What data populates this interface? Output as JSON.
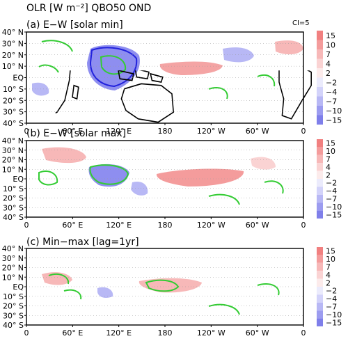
{
  "figure": {
    "title": "OLR [W m⁻²] QBO50 OND",
    "contour_interval": "CI=5",
    "lat_ticks": [
      "40° N",
      "30° N",
      "20° N",
      "10° N",
      "EQ",
      "10° S",
      "20° S",
      "30° S",
      "40° S"
    ],
    "lon_ticks": [
      "0",
      "60° E",
      "120° E",
      "180",
      "120° W",
      "60° W",
      "0"
    ],
    "colorbar": {
      "labels": [
        "15",
        "10",
        "7",
        "4",
        "2",
        "−2",
        "−4",
        "−7",
        "−10",
        "−15"
      ],
      "positive_colors": [
        "#f18080",
        "#f49c9c",
        "#f7b8b8",
        "#fad3d3",
        "#fcebeb"
      ],
      "negative_colors": [
        "#ebebfc",
        "#d3d3fa",
        "#b8b8f5",
        "#9c9cf0",
        "#7f7fea"
      ]
    },
    "panels": [
      {
        "label": "(a)  E−W  [solar min]"
      },
      {
        "label": "(b)  E−W  [solar max]"
      },
      {
        "label": "(c)  Min−max  [lag=1yr]"
      }
    ],
    "colors": {
      "coast": "#000000",
      "positive_contour": "#33cc33",
      "negative_contour": "#2222dd",
      "grid": "#999999"
    }
  }
}
